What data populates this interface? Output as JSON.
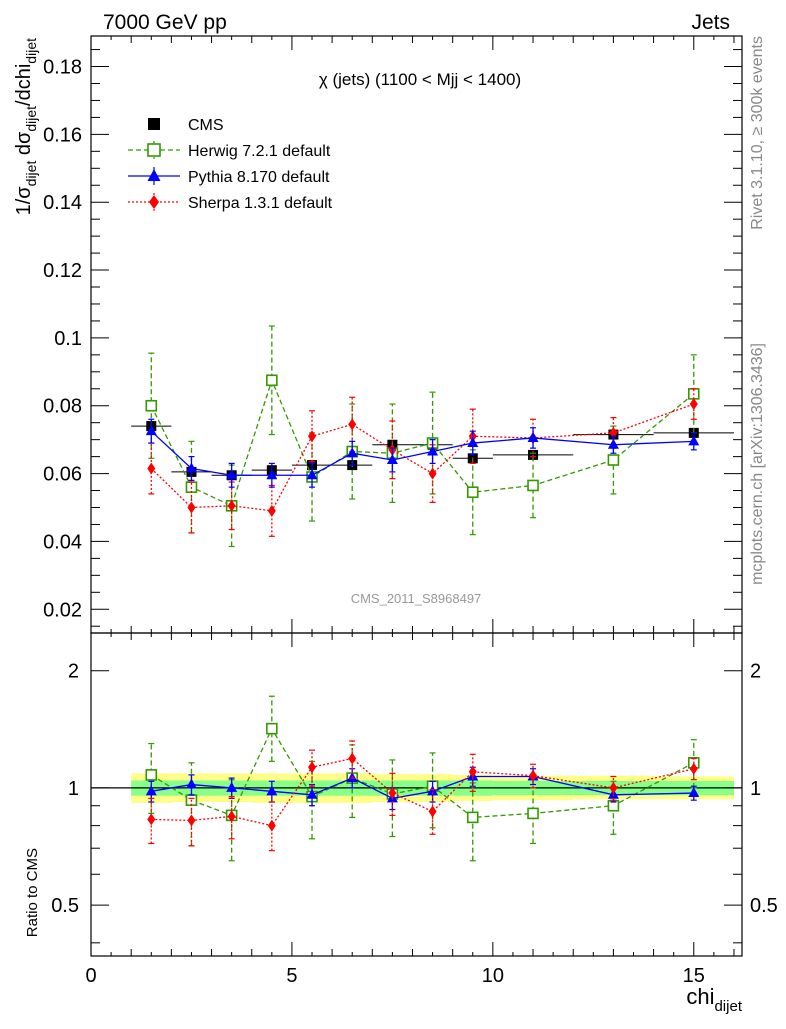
{
  "header": {
    "left": "7000 GeV pp",
    "right": "Jets"
  },
  "side_labels": {
    "rivet": "Rivet 3.1.10, ≥ 300k events",
    "source": "mcplots.cern.ch [arXiv:1306.3436]"
  },
  "chart_data": [
    {
      "type": "scatter",
      "title": "χ (jets) (1100 < Mjj < 1400)",
      "watermark": "CMS_2011_S8968497",
      "ylabel": "1/σ_dijet dσ_dijet/dchi_dijet",
      "xlim": [
        0,
        16.2
      ],
      "ylim": [
        0.013,
        0.189
      ],
      "yticks": [
        "0.02",
        "0.04",
        "0.06",
        "0.08",
        "0.1",
        "0.12",
        "0.14",
        "0.16",
        "0.18"
      ],
      "legend": {
        "position": "top-left"
      },
      "series": [
        {
          "name": "CMS",
          "color": "#000000",
          "marker": "filled-square",
          "line": "none",
          "x": [
            1.5,
            2.5,
            3.5,
            4.5,
            5.5,
            6.5,
            7.5,
            8.5,
            9.5,
            11.0,
            13.0,
            15.0
          ],
          "y": [
            0.074,
            0.0605,
            0.0595,
            0.061,
            0.0625,
            0.0625,
            0.0685,
            0.0685,
            0.0645,
            0.0655,
            0.0715,
            0.072
          ],
          "xerr": [
            0.5,
            0.5,
            0.5,
            0.5,
            0.5,
            0.5,
            0.5,
            0.5,
            0.5,
            1.0,
            1.0,
            1.0
          ],
          "yerr": [
            0.001,
            0.001,
            0.001,
            0.001,
            0.001,
            0.001,
            0.001,
            0.001,
            0.001,
            0.001,
            0.001,
            0.001
          ]
        },
        {
          "name": "Herwig 7.2.1 default",
          "color": "#339900",
          "marker": "open-square",
          "line": "dashed",
          "x": [
            1.5,
            2.5,
            3.5,
            4.5,
            5.5,
            6.5,
            7.5,
            8.5,
            9.5,
            11.0,
            13.0,
            15.0
          ],
          "y": [
            0.08,
            0.056,
            0.0505,
            0.0875,
            0.059,
            0.0665,
            0.066,
            0.069,
            0.0545,
            0.0565,
            0.064,
            0.0835
          ],
          "yerr": [
            0.0155,
            0.0135,
            0.012,
            0.016,
            0.013,
            0.014,
            0.0145,
            0.015,
            0.0125,
            0.0095,
            0.01,
            0.0115
          ]
        },
        {
          "name": "Pythia 8.170 default",
          "color": "#0000ff",
          "marker": "filled-triangle",
          "line": "solid",
          "x": [
            1.5,
            2.5,
            3.5,
            4.5,
            5.5,
            6.5,
            7.5,
            8.5,
            9.5,
            11.0,
            13.0,
            15.0
          ],
          "y": [
            0.0725,
            0.0615,
            0.0595,
            0.0595,
            0.0595,
            0.066,
            0.064,
            0.0665,
            0.069,
            0.0705,
            0.0685,
            0.0695
          ],
          "yerr": [
            0.0035,
            0.0035,
            0.0035,
            0.0035,
            0.0035,
            0.0035,
            0.0035,
            0.0035,
            0.0035,
            0.003,
            0.0025,
            0.0025
          ]
        },
        {
          "name": "Sherpa 1.3.1 default",
          "color": "#ff0000",
          "marker": "filled-diamond",
          "line": "dotted",
          "x": [
            1.5,
            2.5,
            3.5,
            4.5,
            5.5,
            6.5,
            7.5,
            8.5,
            9.5,
            11.0,
            13.0,
            15.0
          ],
          "y": [
            0.0615,
            0.05,
            0.0505,
            0.049,
            0.071,
            0.0745,
            0.067,
            0.06,
            0.071,
            0.0705,
            0.072,
            0.0805
          ],
          "yerr": [
            0.0075,
            0.0075,
            0.007,
            0.0075,
            0.0075,
            0.008,
            0.0085,
            0.0085,
            0.008,
            0.0055,
            0.0045,
            0.0045
          ]
        }
      ]
    },
    {
      "type": "scatter",
      "title": "",
      "ylabel": "Ratio to CMS",
      "xlabel": "chi_dijet",
      "xlim": [
        0,
        16.2
      ],
      "ylim": [
        0.37,
        2.5
      ],
      "ylog": true,
      "yticks": [
        "0.5",
        "1",
        "2"
      ],
      "xticks": [
        "0",
        "5",
        "10",
        "15"
      ],
      "reference_line": 1,
      "bands": {
        "x_edges": [
          1.0,
          2.0,
          3.0,
          4.0,
          5.0,
          6.0,
          7.0,
          8.0,
          9.0,
          10.0,
          12.0,
          14.0,
          16.0
        ],
        "inner": [
          [
            0.955,
            1.045
          ],
          [
            0.955,
            1.045
          ],
          [
            0.955,
            1.045
          ],
          [
            0.955,
            1.045
          ],
          [
            0.955,
            1.045
          ],
          [
            0.955,
            1.045
          ],
          [
            0.955,
            1.045
          ],
          [
            0.955,
            1.045
          ],
          [
            0.955,
            1.045
          ],
          [
            0.958,
            1.042
          ],
          [
            0.958,
            1.042
          ],
          [
            0.958,
            1.042
          ]
        ],
        "outer": [
          [
            0.915,
            1.09
          ],
          [
            0.92,
            1.09
          ],
          [
            0.92,
            1.09
          ],
          [
            0.915,
            1.09
          ],
          [
            0.915,
            1.09
          ],
          [
            0.915,
            1.09
          ],
          [
            0.92,
            1.085
          ],
          [
            0.92,
            1.085
          ],
          [
            0.925,
            1.08
          ],
          [
            0.93,
            1.075
          ],
          [
            0.935,
            1.075
          ],
          [
            0.935,
            1.07
          ]
        ],
        "inner_color": "#88ff88",
        "outer_color": "#ffff88"
      },
      "series": [
        {
          "name": "Herwig 7.2.1 default",
          "color": "#339900",
          "marker": "open-square",
          "line": "dashed",
          "x": [
            1.5,
            2.5,
            3.5,
            4.5,
            5.5,
            6.5,
            7.5,
            8.5,
            9.5,
            11.0,
            13.0,
            15.0
          ],
          "y": [
            1.08,
            0.93,
            0.85,
            1.42,
            0.95,
            1.06,
            0.965,
            1.01,
            0.84,
            0.86,
            0.9,
            1.16
          ],
          "ylo": [
            0.86,
            0.71,
            0.65,
            1.17,
            0.74,
            0.84,
            0.75,
            0.79,
            0.65,
            0.72,
            0.76,
            1.0
          ],
          "yhi": [
            1.3,
            1.16,
            1.05,
            1.72,
            1.17,
            1.29,
            1.18,
            1.23,
            1.03,
            1.0,
            1.04,
            1.33
          ]
        },
        {
          "name": "Pythia 8.170 default",
          "color": "#0000ff",
          "marker": "filled-triangle",
          "line": "solid",
          "x": [
            1.5,
            2.5,
            3.5,
            4.5,
            5.5,
            6.5,
            7.5,
            8.5,
            9.5,
            11.0,
            13.0,
            15.0
          ],
          "y": [
            0.98,
            1.02,
            1.0,
            0.98,
            0.96,
            1.06,
            0.94,
            0.98,
            1.07,
            1.07,
            0.96,
            0.97
          ],
          "ylo": [
            0.92,
            0.96,
            0.94,
            0.92,
            0.9,
            1.0,
            0.88,
            0.92,
            1.01,
            1.02,
            0.92,
            0.93
          ],
          "yhi": [
            1.04,
            1.08,
            1.06,
            1.04,
            1.02,
            1.12,
            1.0,
            1.04,
            1.13,
            1.12,
            1.0,
            1.01
          ]
        },
        {
          "name": "Sherpa 1.3.1 default",
          "color": "#ff0000",
          "marker": "filled-diamond",
          "line": "dotted",
          "x": [
            1.5,
            2.5,
            3.5,
            4.5,
            5.5,
            6.5,
            7.5,
            8.5,
            9.5,
            11.0,
            13.0,
            15.0
          ],
          "y": [
            0.83,
            0.825,
            0.845,
            0.8,
            1.13,
            1.19,
            0.97,
            0.87,
            1.1,
            1.075,
            1.0,
            1.12
          ],
          "ylo": [
            0.72,
            0.71,
            0.74,
            0.69,
            1.01,
            1.06,
            0.85,
            0.76,
            0.98,
            1.0,
            0.93,
            1.05
          ],
          "yhi": [
            0.94,
            0.94,
            0.95,
            0.92,
            1.25,
            1.32,
            1.09,
            0.99,
            1.22,
            1.15,
            1.07,
            1.19
          ]
        }
      ]
    }
  ]
}
